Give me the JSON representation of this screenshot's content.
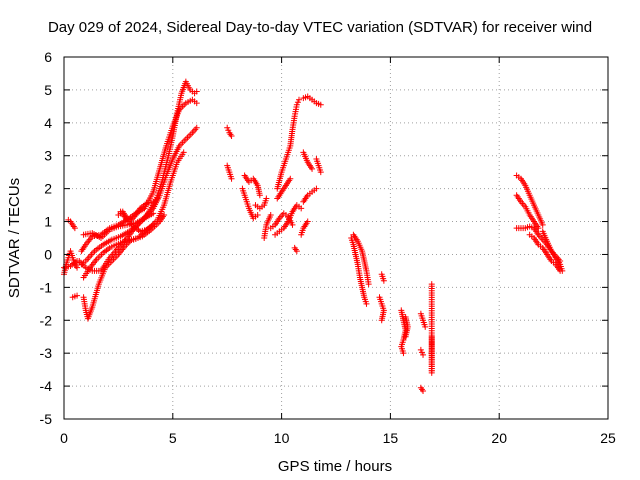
{
  "chart_data": {
    "type": "scatter",
    "title": "Day 029 of 2024, Sidereal Day-to-day VTEC variation (SDTVAR) for receiver wind",
    "xlabel": "GPS time / hours",
    "ylabel": "SDTVAR / TECUs",
    "xlim": [
      0,
      25
    ],
    "ylim": [
      -5,
      6
    ],
    "xticks": [
      0,
      5,
      10,
      15,
      20,
      25
    ],
    "yticks": [
      -5,
      -4,
      -3,
      -2,
      -1,
      0,
      1,
      2,
      3,
      4,
      5,
      6
    ],
    "grid": true,
    "marker": "+",
    "colors": {
      "points": "#ff0000",
      "grid": "#a0a0a0",
      "axis": "#000000"
    },
    "tracks": [
      [
        [
          0.0,
          -0.6
        ],
        [
          0.1,
          -0.3
        ],
        [
          0.2,
          -0.1
        ],
        [
          0.3,
          0.1
        ],
        [
          0.5,
          -0.3
        ],
        [
          0.6,
          -0.4
        ]
      ],
      [
        [
          0.2,
          1.05
        ],
        [
          0.3,
          1.0
        ],
        [
          0.4,
          0.9
        ],
        [
          0.5,
          0.8
        ]
      ],
      [
        [
          0.4,
          -1.3
        ],
        [
          0.6,
          -1.25
        ]
      ],
      [
        [
          0.0,
          -0.4
        ],
        [
          0.3,
          -0.35
        ],
        [
          0.6,
          -0.2
        ],
        [
          0.8,
          -0.3
        ],
        [
          1.0,
          -0.2
        ],
        [
          1.4,
          0.1
        ],
        [
          1.8,
          0.3
        ],
        [
          2.2,
          0.45
        ],
        [
          2.6,
          0.55
        ],
        [
          3.0,
          0.7
        ],
        [
          3.4,
          0.9
        ],
        [
          3.8,
          1.2
        ],
        [
          4.2,
          1.6
        ],
        [
          4.5,
          2.2
        ],
        [
          4.8,
          3.0
        ],
        [
          5.0,
          3.6
        ],
        [
          5.2,
          4.3
        ],
        [
          5.4,
          4.9
        ],
        [
          5.6,
          5.25
        ],
        [
          5.8,
          5.0
        ],
        [
          6.0,
          4.9
        ],
        [
          6.1,
          4.95
        ]
      ],
      [
        [
          0.8,
          0.1
        ],
        [
          1.0,
          0.3
        ],
        [
          1.3,
          0.55
        ],
        [
          1.7,
          0.6
        ],
        [
          2.1,
          0.8
        ],
        [
          2.5,
          0.9
        ],
        [
          2.9,
          1.05
        ],
        [
          3.3,
          1.25
        ],
        [
          3.7,
          1.4
        ],
        [
          4.1,
          1.9
        ],
        [
          4.4,
          2.6
        ],
        [
          4.7,
          3.3
        ],
        [
          5.0,
          3.9
        ],
        [
          5.3,
          4.4
        ],
        [
          5.6,
          4.6
        ],
        [
          5.9,
          4.7
        ],
        [
          6.1,
          4.6
        ]
      ],
      [
        [
          0.7,
          -0.2
        ],
        [
          1.0,
          -0.4
        ],
        [
          1.3,
          -0.5
        ],
        [
          1.7,
          -0.5
        ],
        [
          2.1,
          -0.1
        ],
        [
          2.5,
          0.2
        ],
        [
          2.9,
          0.5
        ],
        [
          3.3,
          0.85
        ],
        [
          3.7,
          1.1
        ],
        [
          4.1,
          1.4
        ],
        [
          4.4,
          1.8
        ],
        [
          4.7,
          2.4
        ],
        [
          5.0,
          2.9
        ],
        [
          5.3,
          3.3
        ],
        [
          5.6,
          3.5
        ],
        [
          5.9,
          3.7
        ],
        [
          6.1,
          3.85
        ]
      ],
      [
        [
          0.9,
          -1.3
        ],
        [
          1.0,
          -1.7
        ],
        [
          1.1,
          -1.95
        ],
        [
          1.3,
          -1.6
        ],
        [
          1.6,
          -0.9
        ],
        [
          1.9,
          -0.4
        ],
        [
          2.2,
          -0.2
        ],
        [
          2.5,
          0.0
        ],
        [
          2.8,
          0.25
        ],
        [
          3.1,
          0.45
        ],
        [
          3.4,
          0.5
        ],
        [
          3.7,
          0.7
        ],
        [
          4.0,
          0.85
        ],
        [
          4.3,
          1.05
        ],
        [
          4.6,
          1.5
        ],
        [
          4.9,
          2.2
        ],
        [
          5.2,
          2.8
        ],
        [
          5.5,
          3.1
        ]
      ],
      [
        [
          0.9,
          -0.7
        ],
        [
          1.2,
          -0.4
        ],
        [
          1.5,
          -0.15
        ],
        [
          1.8,
          0.05
        ],
        [
          2.1,
          0.2
        ],
        [
          2.4,
          0.3
        ],
        [
          2.8,
          0.4
        ],
        [
          3.2,
          0.45
        ],
        [
          3.6,
          0.55
        ],
        [
          4.0,
          0.75
        ],
        [
          4.4,
          1.0
        ],
        [
          4.6,
          1.2
        ]
      ],
      [
        [
          2.6,
          1.3
        ],
        [
          2.9,
          1.05
        ],
        [
          3.2,
          0.85
        ],
        [
          3.5,
          0.7
        ],
        [
          3.8,
          0.75
        ],
        [
          4.1,
          0.9
        ]
      ],
      [
        [
          0.9,
          0.6
        ],
        [
          1.3,
          0.65
        ],
        [
          1.7,
          0.5
        ],
        [
          2.1,
          0.75
        ],
        [
          2.5,
          0.85
        ],
        [
          2.9,
          0.9
        ],
        [
          3.3,
          0.95
        ],
        [
          3.7,
          1.1
        ],
        [
          4.1,
          1.25
        ]
      ],
      [
        [
          2.5,
          1.2
        ],
        [
          2.7,
          1.3
        ],
        [
          2.9,
          1.1
        ],
        [
          3.1,
          1.05
        ],
        [
          3.3,
          1.2
        ],
        [
          3.5,
          1.4
        ],
        [
          3.8,
          1.55
        ],
        [
          4.1,
          1.6
        ],
        [
          4.3,
          1.7
        ]
      ],
      [
        [
          7.5,
          3.85
        ],
        [
          7.6,
          3.7
        ],
        [
          7.7,
          3.6
        ]
      ],
      [
        [
          7.5,
          2.7
        ],
        [
          7.6,
          2.5
        ],
        [
          7.7,
          2.3
        ]
      ],
      [
        [
          8.2,
          2.0
        ],
        [
          8.3,
          1.8
        ],
        [
          8.5,
          1.4
        ],
        [
          8.7,
          1.1
        ],
        [
          8.9,
          1.2
        ]
      ],
      [
        [
          8.3,
          2.4
        ],
        [
          8.5,
          2.2
        ],
        [
          8.7,
          2.3
        ],
        [
          8.9,
          2.1
        ],
        [
          9.0,
          1.8
        ]
      ],
      [
        [
          8.8,
          1.5
        ],
        [
          9.0,
          1.4
        ],
        [
          9.2,
          1.5
        ],
        [
          9.3,
          1.7
        ]
      ],
      [
        [
          9.2,
          0.5
        ],
        [
          9.3,
          0.9
        ],
        [
          9.5,
          1.2
        ]
      ],
      [
        [
          9.5,
          0.8
        ],
        [
          9.7,
          0.9
        ],
        [
          9.9,
          1.1
        ],
        [
          10.1,
          1.25
        ],
        [
          10.3,
          1.15
        ],
        [
          10.5,
          0.9
        ]
      ],
      [
        [
          9.8,
          1.7
        ],
        [
          10.0,
          1.9
        ],
        [
          10.2,
          2.1
        ],
        [
          10.4,
          2.3
        ]
      ],
      [
        [
          9.7,
          0.6
        ],
        [
          9.9,
          0.7
        ],
        [
          10.1,
          0.8
        ],
        [
          10.3,
          1.0
        ],
        [
          10.5,
          1.3
        ],
        [
          10.7,
          1.5
        ],
        [
          10.9,
          1.4
        ]
      ],
      [
        [
          9.8,
          2.0
        ],
        [
          10.0,
          2.5
        ],
        [
          10.2,
          2.9
        ],
        [
          10.4,
          3.3
        ],
        [
          10.5,
          3.8
        ],
        [
          10.6,
          4.2
        ],
        [
          10.7,
          4.55
        ],
        [
          10.8,
          4.7
        ]
      ],
      [
        [
          10.6,
          0.2
        ],
        [
          10.7,
          0.1
        ]
      ],
      [
        [
          11.0,
          4.75
        ],
        [
          11.2,
          4.8
        ],
        [
          11.4,
          4.7
        ],
        [
          11.6,
          4.6
        ],
        [
          11.8,
          4.55
        ]
      ],
      [
        [
          11.0,
          3.1
        ],
        [
          11.2,
          2.8
        ],
        [
          11.4,
          2.6
        ]
      ],
      [
        [
          11.6,
          2.9
        ],
        [
          11.7,
          2.7
        ],
        [
          11.8,
          2.5
        ]
      ],
      [
        [
          11.0,
          1.6
        ],
        [
          11.2,
          1.8
        ],
        [
          11.4,
          1.9
        ],
        [
          11.6,
          2.0
        ]
      ],
      [
        [
          10.9,
          0.6
        ],
        [
          11.0,
          0.8
        ],
        [
          11.2,
          1.0
        ]
      ],
      [
        [
          13.2,
          0.5
        ],
        [
          13.3,
          0.3
        ],
        [
          13.4,
          0.0
        ],
        [
          13.5,
          -0.3
        ],
        [
          13.6,
          -0.7
        ],
        [
          13.7,
          -1.0
        ],
        [
          13.8,
          -1.3
        ],
        [
          13.9,
          -1.5
        ]
      ],
      [
        [
          13.3,
          0.6
        ],
        [
          13.5,
          0.4
        ],
        [
          13.7,
          0.1
        ],
        [
          13.8,
          -0.2
        ],
        [
          13.9,
          -0.5
        ],
        [
          14.0,
          -0.9
        ]
      ],
      [
        [
          14.6,
          -0.6
        ],
        [
          14.7,
          -0.8
        ]
      ],
      [
        [
          14.5,
          -1.3
        ],
        [
          14.6,
          -1.5
        ],
        [
          14.7,
          -1.7
        ],
        [
          14.6,
          -2.0
        ]
      ],
      [
        [
          15.5,
          -1.7
        ],
        [
          15.6,
          -2.0
        ],
        [
          15.7,
          -2.3
        ],
        [
          15.6,
          -2.6
        ],
        [
          15.5,
          -2.8
        ],
        [
          15.6,
          -3.0
        ]
      ],
      [
        [
          15.7,
          -1.9
        ],
        [
          15.8,
          -2.2
        ],
        [
          15.7,
          -2.5
        ]
      ],
      [
        [
          16.4,
          -1.8
        ],
        [
          16.5,
          -2.0
        ],
        [
          16.6,
          -2.2
        ]
      ],
      [
        [
          16.4,
          -2.9
        ],
        [
          16.5,
          -3.05
        ]
      ],
      [
        [
          16.4,
          -4.05
        ],
        [
          16.5,
          -4.15
        ]
      ],
      [
        [
          16.9,
          -2.5
        ],
        [
          16.9,
          -2.75
        ],
        [
          16.9,
          -3.6
        ],
        [
          16.9,
          -0.9
        ]
      ],
      [
        [
          20.8,
          2.4
        ],
        [
          21.0,
          2.3
        ],
        [
          21.2,
          2.1
        ],
        [
          21.4,
          1.8
        ],
        [
          21.6,
          1.5
        ],
        [
          21.8,
          1.2
        ],
        [
          22.0,
          0.9
        ]
      ],
      [
        [
          20.8,
          1.8
        ],
        [
          21.0,
          1.6
        ],
        [
          21.2,
          1.45
        ],
        [
          21.4,
          1.2
        ],
        [
          21.6,
          1.0
        ],
        [
          21.8,
          0.8
        ]
      ],
      [
        [
          20.8,
          0.8
        ],
        [
          21.0,
          0.8
        ],
        [
          21.2,
          0.8
        ],
        [
          21.4,
          0.85
        ],
        [
          21.6,
          0.8
        ],
        [
          21.8,
          0.6
        ],
        [
          22.0,
          0.45
        ],
        [
          22.2,
          0.3
        ],
        [
          22.4,
          0.1
        ],
        [
          22.6,
          -0.05
        ],
        [
          22.8,
          -0.2
        ]
      ],
      [
        [
          21.4,
          0.6
        ],
        [
          21.6,
          0.5
        ],
        [
          21.8,
          0.3
        ],
        [
          22.0,
          0.2
        ],
        [
          22.2,
          0.0
        ],
        [
          22.4,
          -0.2
        ],
        [
          22.6,
          -0.3
        ],
        [
          22.8,
          -0.5
        ]
      ],
      [
        [
          22.0,
          0.7
        ],
        [
          22.2,
          0.4
        ],
        [
          22.4,
          0.1
        ],
        [
          22.6,
          -0.1
        ],
        [
          22.8,
          -0.3
        ],
        [
          22.9,
          -0.5
        ]
      ]
    ]
  }
}
